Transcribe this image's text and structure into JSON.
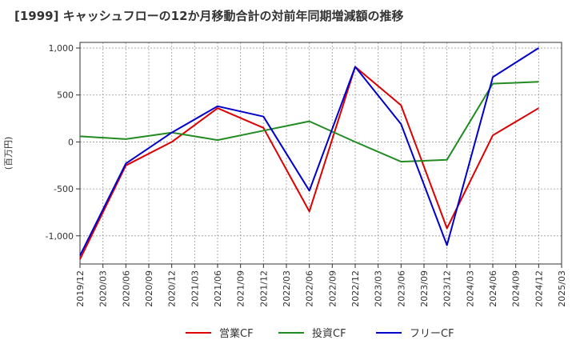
{
  "chart_data": {
    "type": "line",
    "title": "[1999]  キャッシュフローの12か月移動合計の対前年同期増減額の推移",
    "ylabel": "(百万円)",
    "xlabel": "",
    "x_ticks": [
      "2019/12",
      "2020/03",
      "2020/06",
      "2020/09",
      "2020/12",
      "2021/03",
      "2021/06",
      "2021/09",
      "2021/12",
      "2022/03",
      "2022/06",
      "2022/09",
      "2022/12",
      "2023/03",
      "2023/06",
      "2023/09",
      "2023/12",
      "2024/03",
      "2024/06",
      "2024/09",
      "2024/12",
      "2025/03"
    ],
    "y_ticks": [
      {
        "value": 1000,
        "label": "1,000"
      },
      {
        "value": 500,
        "label": "500"
      },
      {
        "value": 0,
        "label": "0"
      },
      {
        "value": -500,
        "label": "-500"
      },
      {
        "value": -1000,
        "label": "-1,000"
      }
    ],
    "ylim": [
      -1300,
      1060
    ],
    "grid": true,
    "legend_position": "bottom",
    "series": [
      {
        "name": "営業CF",
        "color": "#dd0000",
        "points": [
          [
            "2019/12",
            -1250
          ],
          [
            "2020/06",
            -250
          ],
          [
            "2020/12",
            0
          ],
          [
            "2021/06",
            360
          ],
          [
            "2021/12",
            150
          ],
          [
            "2022/06",
            -740
          ],
          [
            "2022/12",
            800
          ],
          [
            "2023/06",
            390
          ],
          [
            "2023/12",
            -920
          ],
          [
            "2024/06",
            70
          ],
          [
            "2024/12",
            360
          ]
        ]
      },
      {
        "name": "投資CF",
        "color": "#228b22",
        "points": [
          [
            "2019/12",
            60
          ],
          [
            "2020/06",
            30
          ],
          [
            "2020/12",
            100
          ],
          [
            "2021/06",
            20
          ],
          [
            "2021/12",
            120
          ],
          [
            "2022/06",
            220
          ],
          [
            "2022/12",
            0
          ],
          [
            "2023/06",
            -210
          ],
          [
            "2023/12",
            -190
          ],
          [
            "2024/06",
            620
          ],
          [
            "2024/12",
            640
          ]
        ]
      },
      {
        "name": "フリーCF",
        "color": "#0000cc",
        "points": [
          [
            "2019/12",
            -1210
          ],
          [
            "2020/06",
            -230
          ],
          [
            "2020/12",
            100
          ],
          [
            "2021/06",
            380
          ],
          [
            "2021/12",
            270
          ],
          [
            "2022/06",
            -520
          ],
          [
            "2022/12",
            800
          ],
          [
            "2023/06",
            190
          ],
          [
            "2023/12",
            -1100
          ],
          [
            "2024/06",
            690
          ],
          [
            "2024/12",
            1000
          ]
        ]
      }
    ]
  }
}
